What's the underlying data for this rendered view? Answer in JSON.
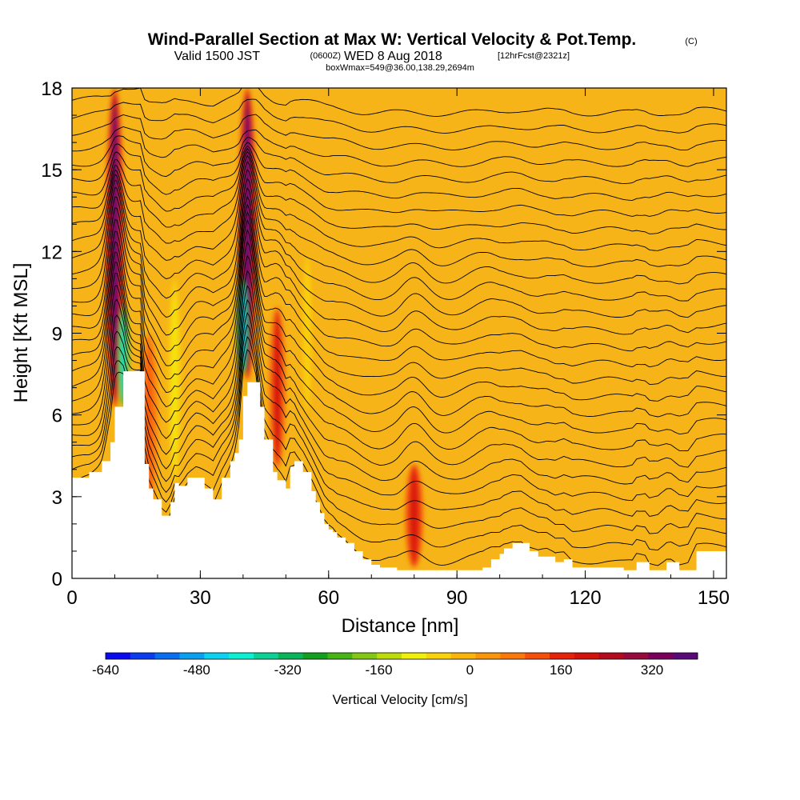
{
  "header": {
    "title": "Wind-Parallel Section at Max W: Vertical Velocity & Pot.Temp.",
    "copyright": "(C)",
    "valid_prefix": "Valid 1500 JST",
    "valid_utc": "(0600Z)",
    "valid_date": "WED 8 Aug 2018",
    "forecast": "[12hrFcst@2321z]",
    "boxinfo": "boxWmax=549@36.00,138.29,2694m"
  },
  "chart_data": {
    "type": "heatmap",
    "xlabel": "Distance [nm]",
    "ylabel": "Height [Kft MSL]",
    "xlim": [
      0,
      153
    ],
    "ylim": [
      0,
      18
    ],
    "x_ticks": [
      "0",
      "30",
      "60",
      "90",
      "120",
      "150"
    ],
    "y_ticks": [
      "0",
      "3",
      "6",
      "9",
      "12",
      "15",
      "18"
    ],
    "colorbar": {
      "label": "Vertical Velocity [cm/s]",
      "tick_labels": [
        "-640",
        "-480",
        "-320",
        "-160",
        "0",
        "160",
        "320"
      ],
      "tick_values": [
        -640,
        -480,
        -320,
        -160,
        0,
        160,
        320
      ],
      "range": [
        -640,
        400
      ],
      "colors": [
        "#0a0af0",
        "#0a3cf0",
        "#0a6ef0",
        "#0aa0f0",
        "#0ad2f0",
        "#0af0d2",
        "#0ad296",
        "#0ab45a",
        "#14a01e",
        "#46b414",
        "#82c814",
        "#bedc0a",
        "#f0f00a",
        "#fad20a",
        "#fab40a",
        "#fa960a",
        "#fa780a",
        "#f5500a",
        "#e6230a",
        "#d2140a",
        "#b40a1e",
        "#960a3c",
        "#78005a",
        "#5a0a78"
      ]
    },
    "background_color": "#f6b418",
    "updraft_cores": [
      {
        "x": 10,
        "y_bottom": 6.3,
        "y_top": 18,
        "peak_cm_s": 400
      },
      {
        "x": 41,
        "y_bottom": 7.3,
        "y_top": 18,
        "peak_cm_s": 400
      },
      {
        "x": 48,
        "y_bottom": 4.0,
        "y_top": 10,
        "peak_cm_s": 200
      },
      {
        "x": 80,
        "y_bottom": 0.4,
        "y_top": 4.2,
        "peak_cm_s": 220
      },
      {
        "x": 18,
        "y_bottom": 2.5,
        "y_top": 9,
        "peak_cm_s": 120
      }
    ],
    "downdraft_cores": [
      {
        "x": 12,
        "y_bottom": 6.3,
        "y_top": 10,
        "min_cm_s": -400
      },
      {
        "x": 40,
        "y_bottom": 7.5,
        "y_top": 11,
        "min_cm_s": -480
      },
      {
        "x": 24,
        "y_bottom": 3.5,
        "y_top": 11,
        "min_cm_s": -80
      },
      {
        "x": 55,
        "y_bottom": 6.0,
        "y_top": 12,
        "min_cm_s": -60
      }
    ],
    "terrain_height_kft": {
      "x": [
        0,
        4,
        7,
        9,
        10,
        12,
        16,
        17,
        18,
        19,
        21,
        22,
        23,
        24,
        25,
        27,
        29,
        31,
        33,
        35,
        37,
        38,
        39,
        40,
        41,
        43,
        44,
        45,
        47,
        48,
        50,
        51,
        52,
        54,
        56,
        57,
        58,
        59,
        60,
        61,
        62,
        64,
        66,
        68,
        70,
        72,
        74,
        76,
        78,
        80,
        82,
        84,
        86,
        88,
        90,
        92,
        94,
        96,
        98,
        100,
        101,
        103,
        105,
        107,
        109,
        111,
        113,
        115,
        117,
        119,
        121,
        125,
        129,
        131,
        132,
        134,
        135,
        137,
        139,
        140,
        142,
        144,
        146,
        150,
        153
      ],
      "y": [
        3.7,
        3.9,
        4.3,
        5.0,
        6.3,
        7.6,
        7.6,
        4.2,
        3.3,
        2.9,
        2.3,
        2.3,
        2.8,
        3.5,
        3.4,
        3.7,
        3.7,
        3.3,
        2.9,
        3.7,
        4.3,
        4.6,
        5.1,
        6.7,
        7.2,
        7.2,
        6.3,
        5.1,
        3.9,
        3.6,
        3.3,
        4.1,
        4.3,
        3.9,
        3.2,
        2.8,
        2.4,
        2.0,
        1.8,
        1.7,
        1.5,
        1.3,
        1.0,
        0.7,
        0.5,
        0.4,
        0.4,
        0.3,
        0.3,
        0.3,
        0.3,
        0.3,
        0.3,
        0.3,
        0.3,
        0.3,
        0.3,
        0.4,
        0.7,
        0.9,
        1.1,
        1.3,
        1.3,
        1.0,
        0.8,
        0.8,
        0.6,
        0.7,
        0.4,
        0.4,
        0.4,
        0.4,
        0.3,
        0.3,
        0.6,
        0.6,
        0.3,
        0.3,
        0.6,
        0.6,
        0.3,
        0.3,
        1.0,
        1.0,
        1.0
      ]
    },
    "theta_contours": {
      "count": 28,
      "base_kft": 0.3,
      "spacing_kft": 0.62,
      "line_color": "#000000"
    }
  }
}
